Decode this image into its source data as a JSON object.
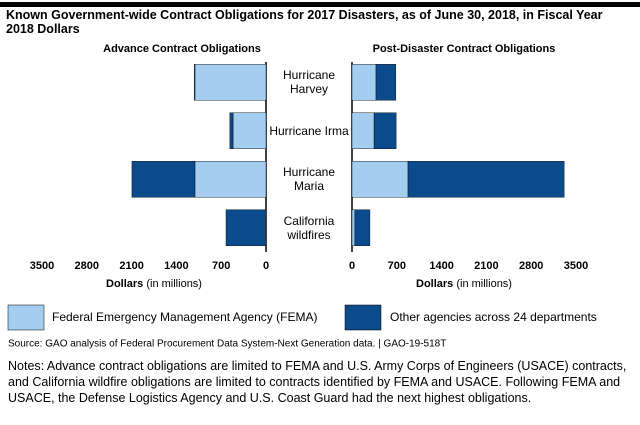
{
  "title": "Known Government-wide Contract Obligations for 2017 Disasters, as of June 30, 2018, in Fiscal Year 2018 Dollars",
  "chart_data": [
    {
      "type": "bar",
      "orientation": "horizontal",
      "title": "Advance Contract Obligations",
      "categories": [
        "Hurricane Harvey",
        "Hurricane Irma",
        "Hurricane Maria",
        "California wildfires"
      ],
      "series": [
        {
          "name": "Federal Emergency Management Agency (FEMA)",
          "color": "#a4cdf0",
          "values": [
            1110,
            515,
            1110,
            10
          ]
        },
        {
          "name": "Other agencies across 24 departments",
          "color": "#0b4a8b",
          "values": [
            10,
            50,
            985,
            615
          ]
        }
      ],
      "xlim": [
        3500,
        0
      ],
      "xticks": [
        3500,
        2800,
        2100,
        1400,
        700,
        0
      ],
      "xlabel": "Dollars (in millions)"
    },
    {
      "type": "bar",
      "orientation": "horizontal",
      "title": "Post-Disaster Contract Obligations",
      "series": [
        {
          "color": "#a4cdf0",
          "values": [
            375,
            345,
            875,
            45
          ]
        },
        {
          "color": "#0b4a8b",
          "values": [
            310,
            345,
            2440,
            235
          ]
        }
      ],
      "xlim": [
        0,
        3500
      ],
      "xticks": [
        0,
        700,
        1400,
        2100,
        2800,
        3500
      ],
      "xlabel": "Dollars (in millions)"
    }
  ],
  "source": "Source: GAO analysis of Federal Procurement Data System-Next Generation data.  |  GAO-19-518T",
  "notes": "Notes: Advance contract obligations are limited to FEMA and U.S. Army Corps of Engineers (USACE) contracts, and California wildfire obligations are limited to contracts identified by FEMA and USACE. Following FEMA and USACE, the Defense Logistics Agency and U.S. Coast Guard had the next highest obligations."
}
